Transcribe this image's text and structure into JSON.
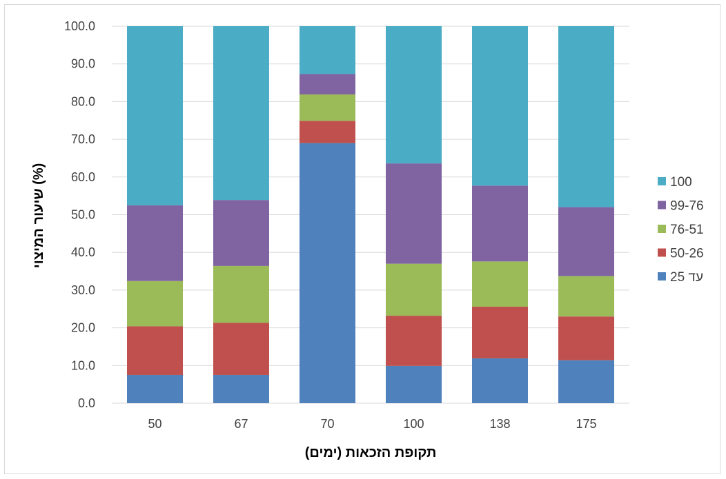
{
  "chart_data": {
    "type": "bar",
    "stacked": true,
    "categories": [
      "50",
      "67",
      "70",
      "100",
      "138",
      "175"
    ],
    "series": [
      {
        "name": "עד 25",
        "color": "#4f81bd",
        "values": [
          7.5,
          7.5,
          69.0,
          9.9,
          11.9,
          11.4
        ]
      },
      {
        "name": "50-26",
        "color": "#c0504d",
        "values": [
          12.9,
          13.8,
          5.9,
          13.3,
          13.7,
          11.6
        ]
      },
      {
        "name": "76-51",
        "color": "#9bbb59",
        "values": [
          12.0,
          15.1,
          7.0,
          13.8,
          12.0,
          10.7
        ]
      },
      {
        "name": "99-76",
        "color": "#8064a2",
        "values": [
          20.1,
          17.5,
          5.4,
          26.6,
          20.1,
          18.3
        ]
      },
      {
        "name": "100",
        "color": "#4bacc6",
        "values": [
          47.5,
          46.1,
          12.7,
          36.4,
          42.3,
          48.0
        ]
      }
    ],
    "xlabel": "תקופת הזכאות (ימים)",
    "ylabel": "שיעור המיצוי (%)",
    "ylim": [
      0,
      100
    ],
    "yticks": [
      "0.0",
      "10.0",
      "20.0",
      "30.0",
      "40.0",
      "50.0",
      "60.0",
      "70.0",
      "80.0",
      "90.0",
      "100.0"
    ],
    "grid": true,
    "legend_position": "right",
    "legend_order": [
      "100",
      "99-76",
      "76-51",
      "50-26",
      "עד 25"
    ]
  }
}
